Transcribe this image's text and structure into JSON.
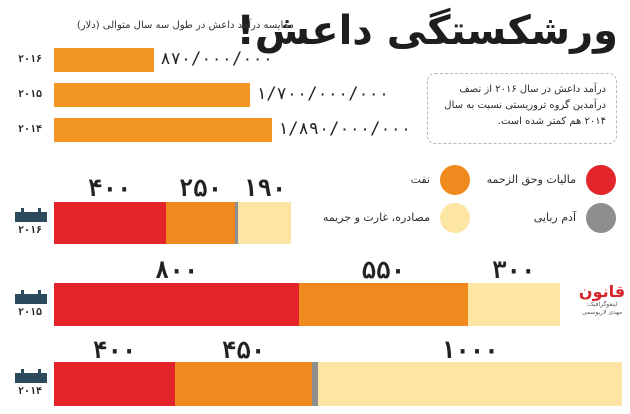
{
  "header": {
    "title": "ورشکستگی داعش!",
    "subtitle": "مقایسه درآمد داعش در طول سه سال متوالی (دلار)",
    "note": "درآمد داعش در سال ۲۰۱۶ از نصف درآمدین گروه تروریستی نسبت به سال ۲۰۱۴ هم کمتر شده است."
  },
  "colors": {
    "tax": "#e3242b",
    "oil": "#f08a1f",
    "kidnap": "#8e8e8e",
    "seizure": "#fde6a3",
    "revenue": "#f39522"
  },
  "legend": [
    {
      "key": "tax",
      "label": "مالیات وحق الزحمه",
      "icon": "red-dot-icon"
    },
    {
      "key": "oil",
      "label": "نفت",
      "icon": "orange-dot-icon"
    },
    {
      "key": "kidnap",
      "label": "آدم ربایی",
      "icon": "gray-dot-icon"
    },
    {
      "key": "seizure",
      "label": "مصادره، غارت و جریمه",
      "icon": "cream-dot-icon"
    }
  ],
  "logo": {
    "name": "قانون",
    "line1": "اینفوگرافیک:",
    "line2": "مهدی لاریوسمی"
  },
  "chart_data": [
    {
      "type": "bar",
      "title": "مقایسه درآمد داعش در طول سه سال متوالی (دلار)",
      "categories": [
        "۲۰۱۶",
        "۲۰۱۵",
        "۲۰۱۴"
      ],
      "values": [
        870000000,
        1700000000,
        1890000000
      ],
      "value_labels": [
        "۸۷۰/۰۰۰/۰۰۰",
        "۱/۷۰۰/۰۰۰/۰۰۰",
        "۱/۸۹۰/۰۰۰/۰۰۰"
      ],
      "xlim": [
        0,
        1890000000
      ]
    },
    {
      "type": "bar",
      "stacked": true,
      "categories": [
        "۲۰۱۶",
        "۲۰۱۵",
        "۲۰۱۴"
      ],
      "series": [
        {
          "name": "مالیات وحق الزحمه",
          "key": "tax",
          "values": [
            400,
            800,
            400
          ],
          "labels": [
            "۴۰۰",
            "۸۰۰",
            "۴۰۰"
          ]
        },
        {
          "name": "نفت",
          "key": "oil",
          "values": [
            250,
            550,
            450
          ],
          "labels": [
            "۲۵۰",
            "۵۵۰",
            "۴۵۰"
          ]
        },
        {
          "name": "آدم ربایی",
          "key": "kidnap",
          "values": [
            10,
            0,
            20
          ],
          "labels": [
            "",
            "",
            ""
          ]
        },
        {
          "name": "مصادره، غارت و جریمه",
          "key": "seizure",
          "values": [
            190,
            300,
            1000
          ],
          "labels": [
            "۱۹۰",
            "۳۰۰",
            "۱۰۰۰"
          ]
        }
      ]
    }
  ]
}
